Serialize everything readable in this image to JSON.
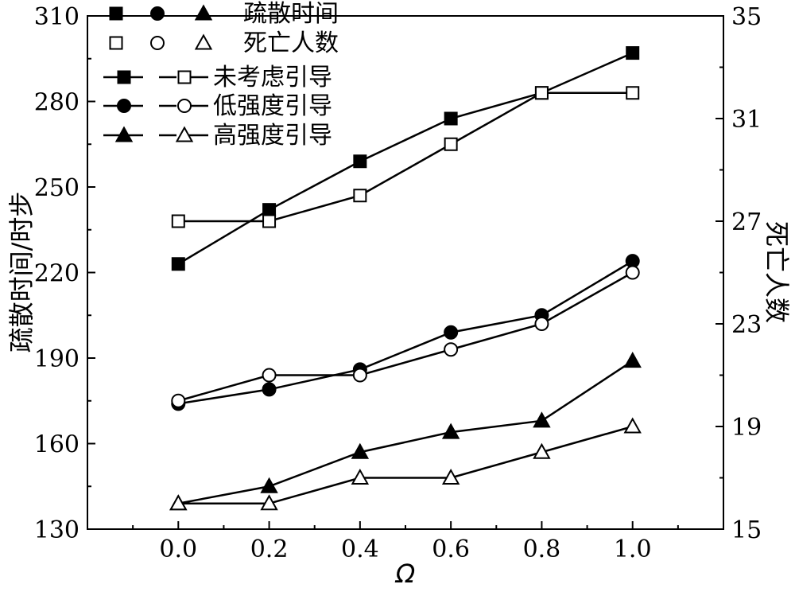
{
  "chart_data": {
    "type": "line",
    "x": [
      0.0,
      0.2,
      0.4,
      0.6,
      0.8,
      1.0
    ],
    "xlabel": "Ω",
    "ylabel": "疏散时间/时步",
    "y2label": "死亡人数",
    "xlim": [
      -0.2,
      1.2
    ],
    "ylim": [
      130,
      310
    ],
    "y2lim": [
      15,
      35
    ],
    "xticks": [
      "0.0",
      "0.2",
      "0.4",
      "0.6",
      "0.8",
      "1.0"
    ],
    "yticks": [
      "130",
      "160",
      "190",
      "220",
      "250",
      "280",
      "310"
    ],
    "y2ticks": [
      "15",
      "19",
      "23",
      "27",
      "31",
      "35"
    ],
    "grid": false,
    "legend_placement": "top-left",
    "legend": {
      "marker_row_1_label": "疏散时间",
      "marker_row_2_label": "死亡人数",
      "series_labels": [
        "未考虑引导",
        "低强度引导",
        "高强度引导"
      ]
    },
    "series": [
      {
        "name": "未考虑引导",
        "metric": "疏散时间",
        "axis": "left",
        "marker": "square",
        "filled": true,
        "style": "solid",
        "values": [
          223,
          242,
          259,
          274,
          283,
          297
        ]
      },
      {
        "name": "未考虑引导",
        "metric": "死亡人数",
        "axis": "right",
        "marker": "square",
        "filled": false,
        "style": "solid",
        "values": [
          27,
          27,
          28,
          30,
          32,
          32
        ]
      },
      {
        "name": "低强度引导",
        "metric": "疏散时间",
        "axis": "left",
        "marker": "circle",
        "filled": true,
        "style": "solid",
        "values": [
          174,
          179,
          186,
          199,
          205,
          224
        ]
      },
      {
        "name": "低强度引导",
        "metric": "死亡人数",
        "axis": "right",
        "marker": "circle",
        "filled": false,
        "style": "solid",
        "values": [
          20,
          21,
          21,
          22,
          23,
          25
        ]
      },
      {
        "name": "高强度引导",
        "metric": "疏散时间",
        "axis": "left",
        "marker": "triangle",
        "filled": true,
        "style": "solid",
        "values": [
          139,
          145,
          157,
          164,
          168,
          189
        ]
      },
      {
        "name": "高强度引导",
        "metric": "死亡人数",
        "axis": "right",
        "marker": "triangle",
        "filled": false,
        "style": "solid",
        "values": [
          16,
          16,
          17,
          17,
          18,
          19
        ]
      }
    ]
  }
}
